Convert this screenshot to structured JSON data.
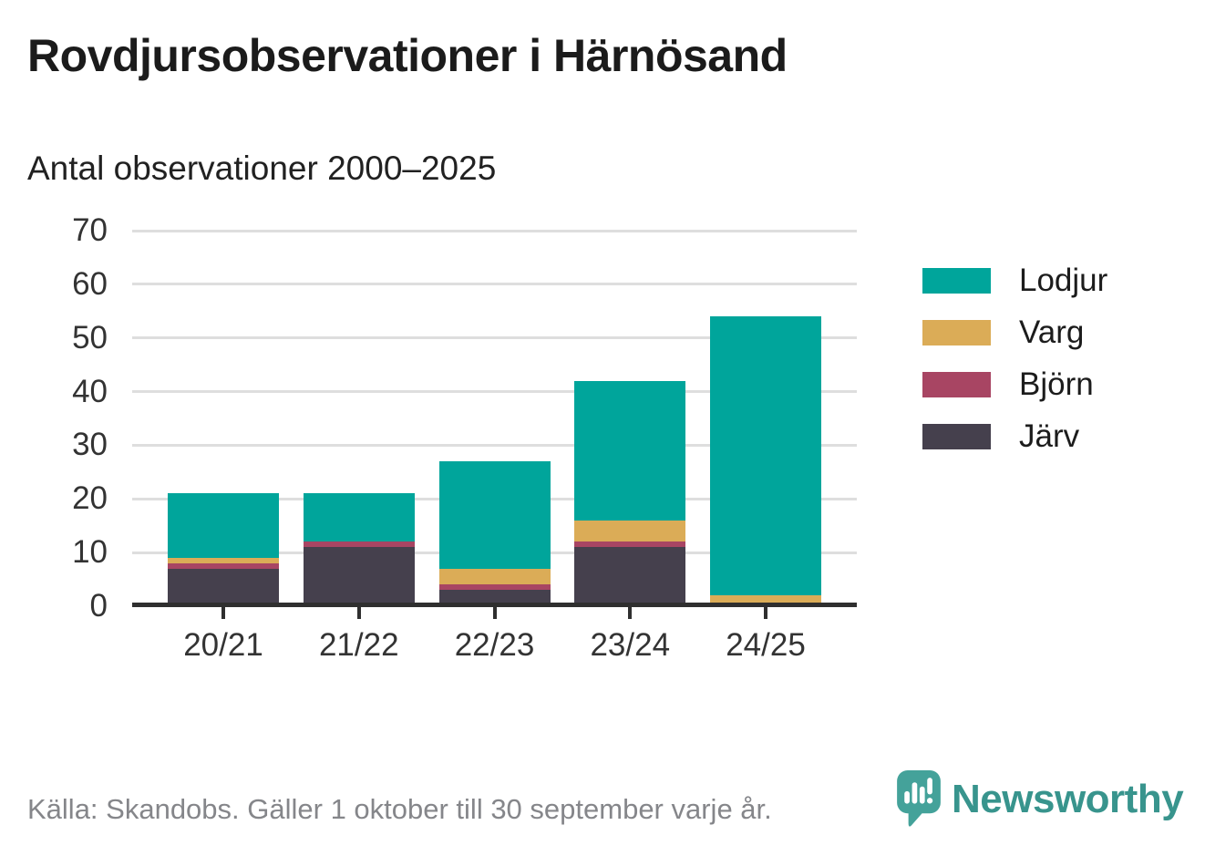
{
  "title": "Rovdjursobservationer i Härnösand",
  "subtitle": "Antal observationer 2000–2025",
  "legend": [
    {
      "label": "Lodjur",
      "color": "#00a59b"
    },
    {
      "label": "Varg",
      "color": "#dbac57"
    },
    {
      "label": "Björn",
      "color": "#a84563"
    },
    {
      "label": "Järv",
      "color": "#45404d"
    }
  ],
  "footer": {
    "source": "Källa: Skandobs. Gäller 1 oktober till 30 september varje år.",
    "brand": "Newsworthy",
    "brand_icon": "newsworthy-speech-bubble-chart-icon",
    "brand_color": "#38948d"
  },
  "colors": {
    "lodjur": "#00a59b",
    "varg": "#dbac57",
    "bjorn": "#a84563",
    "jarv": "#45404d",
    "grid": "#dedede",
    "axis": "#2f2f2f",
    "tick_text": "#333333",
    "title_text": "#1b1b1b",
    "muted_text": "#85868a"
  },
  "chart_data": {
    "type": "bar",
    "stacked": true,
    "title": "Rovdjursobservationer i Härnösand",
    "subtitle": "Antal observationer 2000–2025",
    "categories": [
      "20/21",
      "21/22",
      "22/23",
      "23/24",
      "24/25"
    ],
    "series": [
      {
        "name": "Järv",
        "color": "#45404d",
        "values": [
          7,
          11,
          3,
          11,
          0
        ]
      },
      {
        "name": "Björn",
        "color": "#a84563",
        "values": [
          1,
          1,
          1,
          1,
          0
        ]
      },
      {
        "name": "Varg",
        "color": "#dbac57",
        "values": [
          1,
          0,
          3,
          4,
          2
        ]
      },
      {
        "name": "Lodjur",
        "color": "#00a59b",
        "values": [
          12,
          9,
          20,
          26,
          52
        ]
      }
    ],
    "totals": [
      21,
      21,
      27,
      42,
      54
    ],
    "xlabel": "",
    "ylabel": "",
    "ylim": [
      0,
      70
    ],
    "ytick_step": 10,
    "grid": true,
    "legend_position": "right",
    "legend_order": [
      "Lodjur",
      "Varg",
      "Björn",
      "Järv"
    ]
  }
}
